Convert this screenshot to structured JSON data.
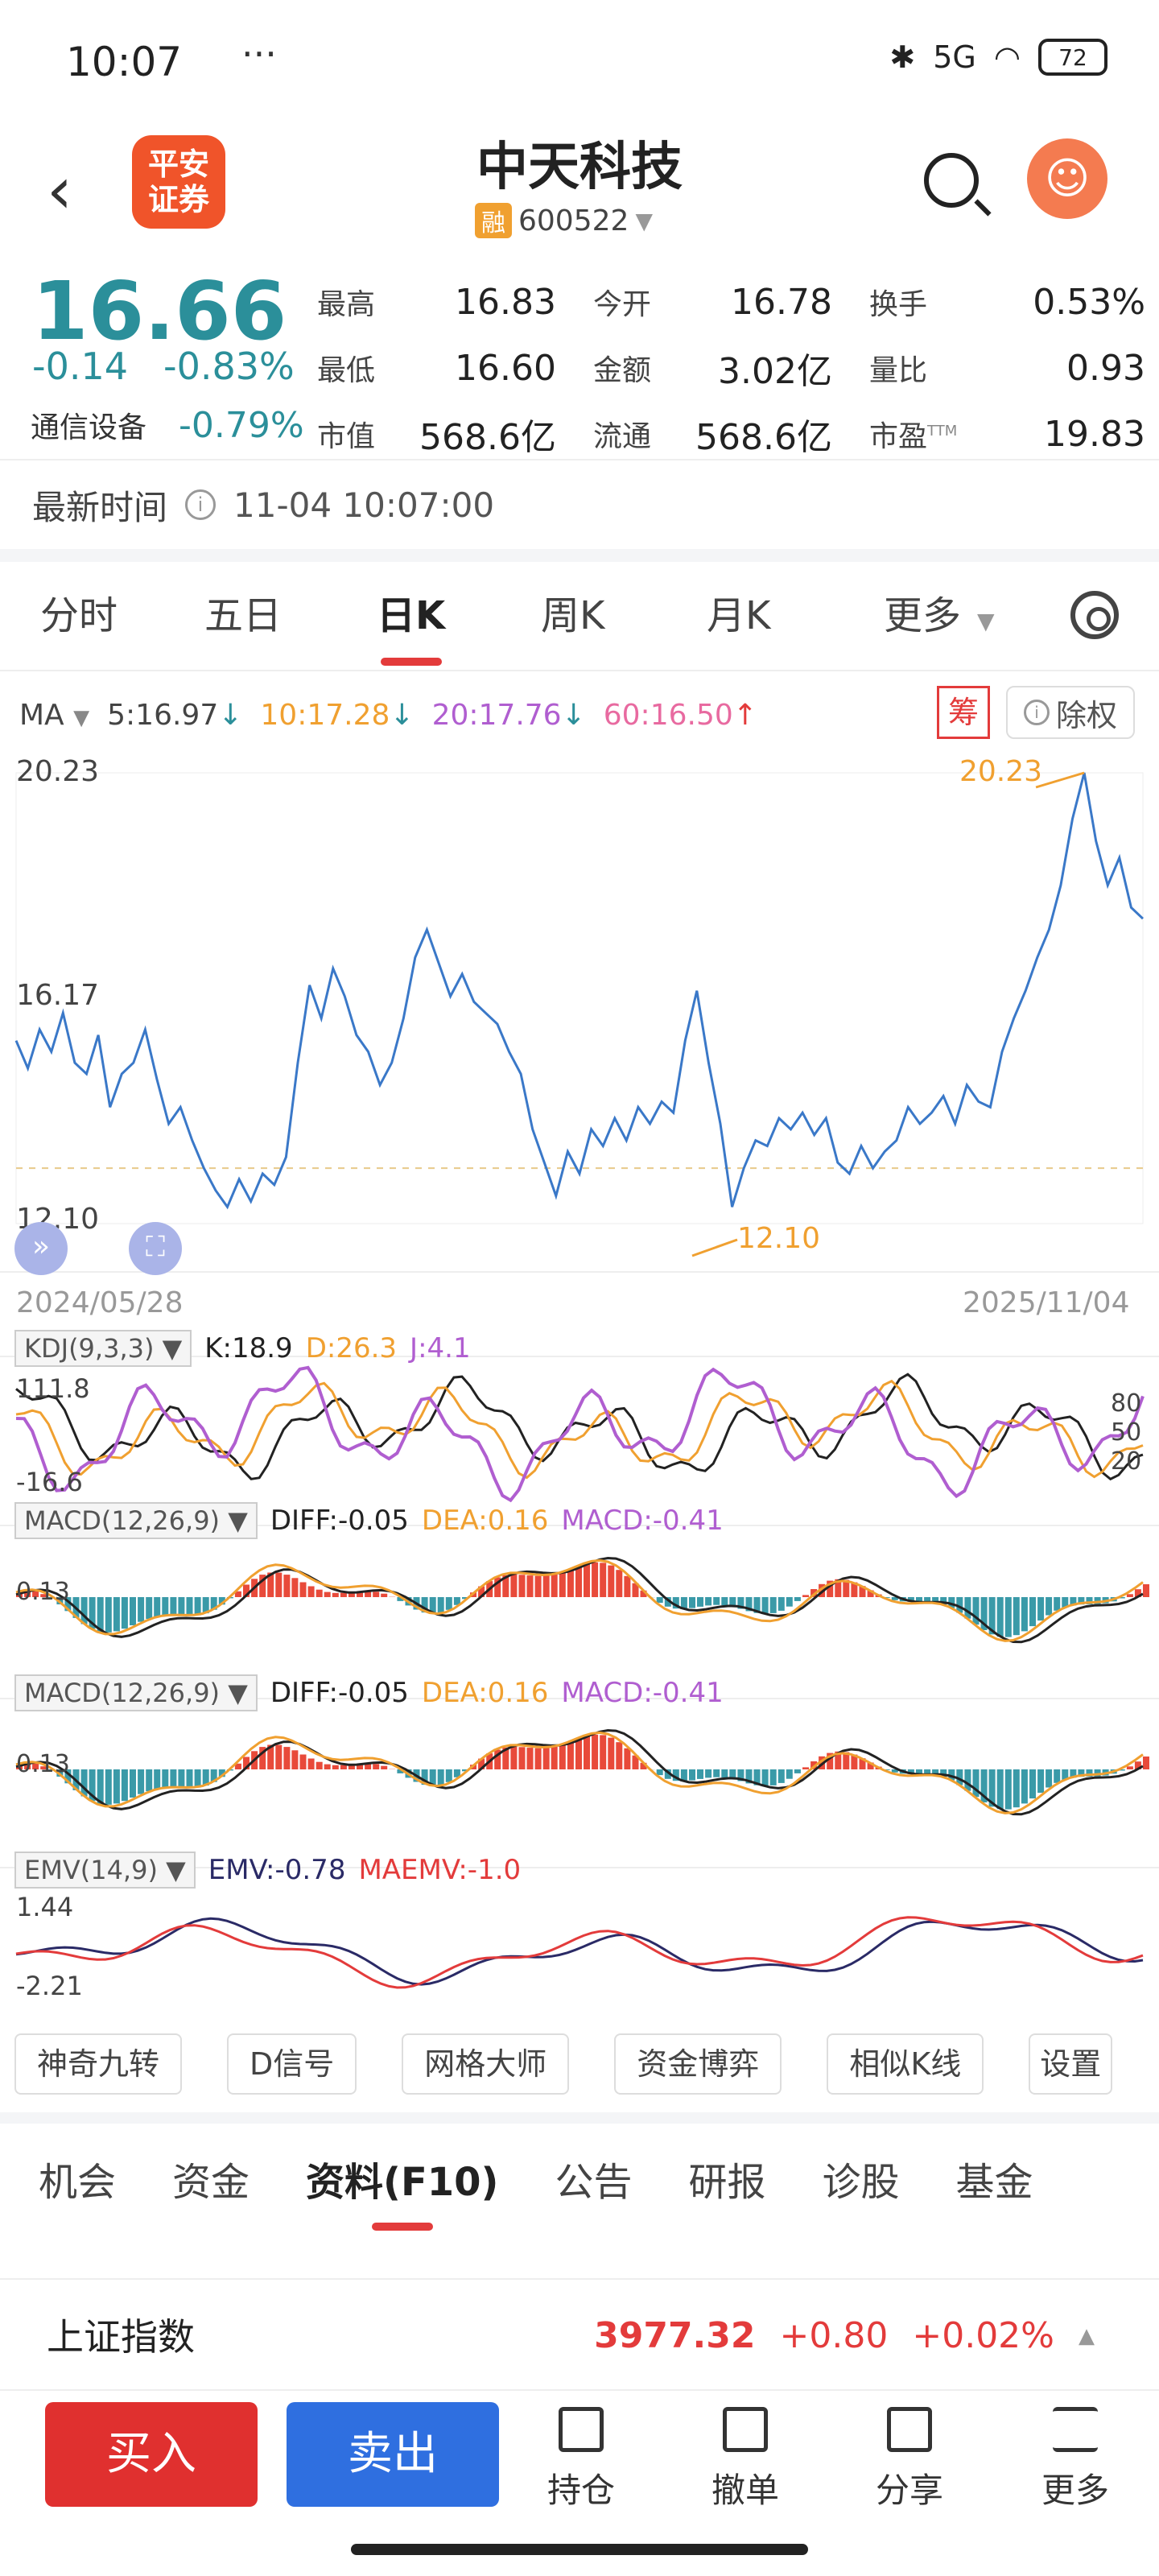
{
  "status": {
    "time": "10:07",
    "dots": "···",
    "net": "5G",
    "battery": "72"
  },
  "header": {
    "logo_line1": "平安",
    "logo_line2": "证券",
    "name": "中天科技",
    "rong": "融",
    "code": "600522"
  },
  "quote": {
    "price": "16.66",
    "change": "-0.14",
    "change_pct": "-0.83%",
    "industry": "通信设备",
    "industry_pct": "-0.79%",
    "rows": [
      [
        {
          "l": "最高",
          "v": "16.83",
          "c": "red"
        },
        {
          "l": "今开",
          "v": "16.78",
          "c": "teal"
        },
        {
          "l": "换手",
          "v": "0.53%",
          "c": ""
        }
      ],
      [
        {
          "l": "最低",
          "v": "16.60",
          "c": "teal"
        },
        {
          "l": "金额",
          "v": "3.02亿",
          "c": ""
        },
        {
          "l": "量比",
          "v": "0.93",
          "c": ""
        }
      ],
      [
        {
          "l": "市值",
          "v": "568.6亿",
          "c": ""
        },
        {
          "l": "流通",
          "v": "568.6亿",
          "c": ""
        },
        {
          "l": "市盈",
          "v": "19.83",
          "c": ""
        }
      ]
    ],
    "ttm": "TTM"
  },
  "updated": {
    "label": "最新时间",
    "value": "11-04 10:07:00"
  },
  "tabs": [
    "分时",
    "五日",
    "日K",
    "周K",
    "月K",
    "更多"
  ],
  "ma": {
    "label": "MA",
    "ma5": "5:16.97",
    "ma10": "10:17.28",
    "ma20": "20:17.76",
    "ma60": "60:16.50",
    "chou": "筹",
    "chuquan": "除权"
  },
  "colors": {
    "up": "#e33b3b",
    "down": "#2b8f9a",
    "line": "#3a78c8",
    "ma10": "#f0a030",
    "ma20": "#b05ed0",
    "ma60": "#e86aa0"
  },
  "chart_data": {
    "type": "line",
    "y_top_label": "20.23",
    "y_mid_label": "16.17",
    "y_bot_label": "12.10",
    "max_label": "20.23",
    "min_label": "12.10",
    "x_start": "2024/05/28",
    "x_end": "2025/11/04",
    "ylim": [
      12.1,
      20.23
    ],
    "values": [
      15.4,
      14.9,
      15.6,
      15.2,
      15.9,
      15.0,
      14.8,
      15.5,
      14.2,
      14.8,
      15.0,
      15.6,
      14.7,
      13.9,
      14.2,
      13.6,
      13.1,
      12.7,
      12.4,
      12.9,
      12.5,
      13.0,
      12.8,
      13.3,
      15.0,
      16.4,
      15.8,
      16.7,
      16.2,
      15.5,
      15.2,
      14.6,
      15.0,
      15.8,
      16.9,
      17.4,
      16.8,
      16.2,
      16.6,
      16.1,
      15.9,
      15.7,
      15.2,
      14.8,
      13.8,
      13.2,
      12.6,
      13.4,
      13.0,
      13.8,
      13.5,
      14.0,
      13.6,
      14.2,
      13.9,
      14.3,
      14.1,
      15.4,
      16.3,
      15.0,
      13.9,
      12.4,
      13.1,
      13.6,
      13.5,
      14.0,
      13.8,
      14.1,
      13.7,
      14.0,
      13.2,
      13.0,
      13.5,
      13.1,
      13.4,
      13.6,
      14.2,
      13.9,
      14.1,
      14.4,
      13.9,
      14.6,
      14.3,
      14.2,
      15.2,
      15.8,
      16.3,
      16.9,
      17.4,
      18.2,
      19.4,
      20.23,
      19.0,
      18.2,
      18.7,
      17.8,
      17.6
    ],
    "kdj": {
      "label": "KDJ(9,3,3)",
      "k": "K:18.9",
      "d": "D:26.3",
      "j": "J:4.1",
      "y_top": "111.8",
      "y_bot": "-16.6",
      "right_ticks": [
        "80",
        "50",
        "20"
      ]
    },
    "macd": {
      "label": "MACD(12,26,9)",
      "diff": "DIFF:-0.05",
      "dea": "DEA:0.16",
      "macd": "MACD:-0.41",
      "y": "0.13"
    },
    "emv": {
      "label": "EMV(14,9)",
      "emv": "EMV:-0.78",
      "maemv": "MAEMV:-1.0",
      "y_top": "1.44",
      "y_bot": "-2.21"
    }
  },
  "quick_buttons": [
    "神奇九转",
    "D信号",
    "网格大师",
    "资金博弈",
    "相似K线",
    "设置"
  ],
  "subtabs": [
    "机会",
    "资金",
    "资料(F10)",
    "公告",
    "研报",
    "诊股",
    "基金"
  ],
  "index": {
    "name": "上证指数",
    "value": "3977.32",
    "change": "+0.80",
    "pct": "+0.02%"
  },
  "bottom": {
    "buy": "买入",
    "sell": "卖出",
    "hold": "持仓",
    "cancel": "撤单",
    "share": "分享",
    "more": "更多"
  }
}
